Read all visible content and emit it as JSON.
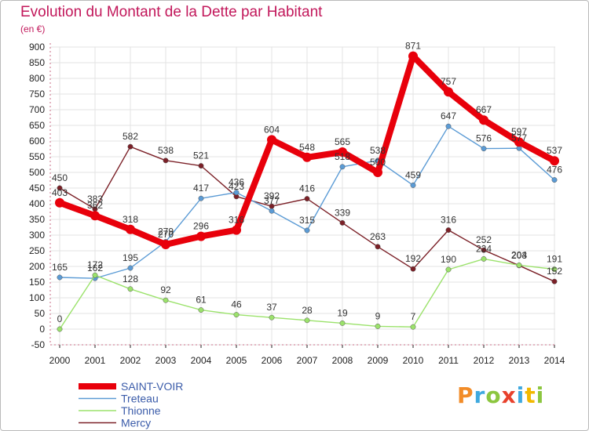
{
  "title": "Evolution du Montant de la Dette par Habitant",
  "unit": "(en €)",
  "logo": [
    "P",
    "r",
    "o",
    "x",
    "i",
    "t",
    "i"
  ],
  "chart_data": {
    "type": "line",
    "title": "Evolution du Montant de la Dette par Habitant",
    "ylabel": "(en €)",
    "xlabel": "",
    "x": [
      "2000",
      "2001",
      "2002",
      "2003",
      "2004",
      "2005",
      "2006",
      "2007",
      "2008",
      "2009",
      "2010",
      "2011",
      "2012",
      "2013",
      "2014"
    ],
    "ylim": [
      -50,
      900
    ],
    "yticks": [
      -50,
      0,
      50,
      100,
      150,
      200,
      250,
      300,
      350,
      400,
      450,
      500,
      550,
      600,
      650,
      700,
      750,
      800,
      850,
      900
    ],
    "grid": true,
    "legend_position": "bottom-left",
    "series": [
      {
        "name": "SAINT-VOIR",
        "color": "#e8000b",
        "values": [
          403,
          362,
          318,
          270,
          296,
          316,
          604,
          548,
          565,
          500,
          871,
          757,
          667,
          597,
          537
        ]
      },
      {
        "name": "Treteau",
        "color": "#5b9bd5",
        "values": [
          165,
          162,
          195,
          279,
          417,
          436,
          377,
          315,
          518,
          538,
          459,
          647,
          576,
          577,
          476
        ]
      },
      {
        "name": "Thionne",
        "color": "#9be26b",
        "values": [
          0,
          172,
          128,
          92,
          61,
          46,
          37,
          28,
          19,
          9,
          7,
          190,
          224,
          204,
          191
        ]
      },
      {
        "name": "Mercy",
        "color": "#7b2027",
        "values": [
          450,
          383,
          582,
          538,
          521,
          423,
          392,
          416,
          339,
          263,
          192,
          316,
          252,
          203,
          152
        ]
      }
    ]
  }
}
